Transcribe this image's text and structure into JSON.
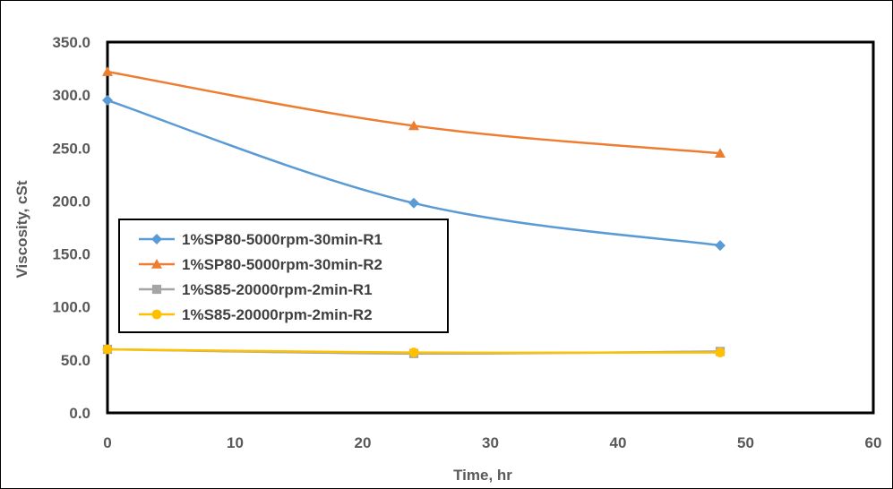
{
  "chart_data": {
    "type": "line",
    "title": "",
    "xlabel": "Time, hr",
    "ylabel": "Viscosity, cSt",
    "xlim": [
      0,
      60
    ],
    "ylim": [
      0,
      350
    ],
    "x_ticks": [
      "0",
      "10",
      "20",
      "30",
      "40",
      "50",
      "60"
    ],
    "y_ticks": [
      "0.0",
      "50.0",
      "100.0",
      "150.0",
      "200.0",
      "250.0",
      "300.0",
      "350.0"
    ],
    "grid": false,
    "legend_position": "left-center",
    "series": [
      {
        "name": "1%SP80-5000rpm-30min-R1",
        "color": "#5B9BD5",
        "marker": "diamond",
        "x": [
          0,
          24,
          48
        ],
        "y": [
          295.0,
          198.0,
          158.0
        ]
      },
      {
        "name": "1%SP80-5000rpm-30min-R2",
        "color": "#ED7D31",
        "marker": "triangle",
        "x": [
          0,
          24,
          48
        ],
        "y": [
          322.0,
          271.0,
          245.0
        ]
      },
      {
        "name": "1%S85-20000rpm-2min-R1",
        "color": "#A5A5A5",
        "marker": "square",
        "x": [
          0,
          24,
          48
        ],
        "y": [
          60.0,
          56.0,
          58.0
        ]
      },
      {
        "name": "1%S85-20000rpm-2min-R2",
        "color": "#FFC000",
        "marker": "circle",
        "x": [
          0,
          24,
          48
        ],
        "y": [
          60.0,
          57.0,
          57.0
        ]
      }
    ]
  }
}
